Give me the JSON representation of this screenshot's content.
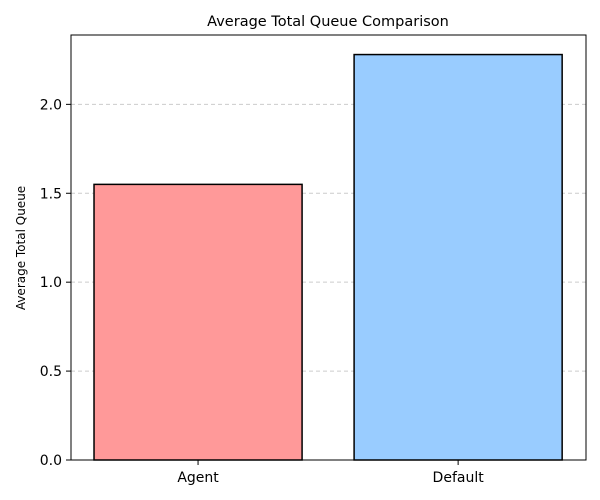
{
  "chart_data": {
    "type": "bar",
    "title": "Average Total Queue Comparison",
    "xlabel": "",
    "ylabel": "Average Total Queue",
    "categories": [
      "Agent",
      "Default"
    ],
    "values": [
      1.55,
      2.28
    ],
    "bar_colors": [
      "#ff9999",
      "#99ccff"
    ],
    "edge_color": "#000000",
    "ylim": [
      0,
      2.39
    ],
    "yticks": [
      0.0,
      0.5,
      1.0,
      1.5,
      2.0
    ],
    "ytick_labels": [
      "0.0",
      "0.5",
      "1.0",
      "1.5",
      "2.0"
    ],
    "grid": {
      "y": true,
      "x": false,
      "style": "dashed",
      "color": "#cccccc"
    }
  }
}
